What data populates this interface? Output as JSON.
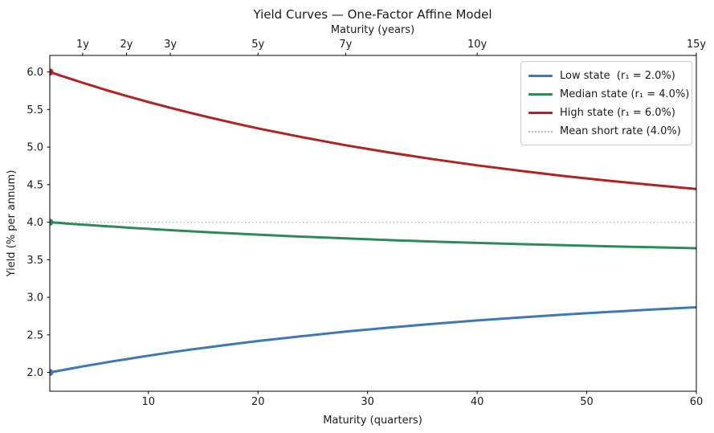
{
  "chart_data": {
    "type": "line",
    "title": "Yield Curves — One-Factor Affine Model",
    "top_xlabel": "Maturity (years)",
    "bottom_xlabel": "Maturity (quarters)",
    "ylabel": "Yield (% per annum)",
    "xlim": [
      1,
      60
    ],
    "ylim": [
      1.75,
      6.22
    ],
    "grid": false,
    "legend_position": "upper right",
    "x_quarters": [
      1,
      2,
      3,
      4,
      5,
      6,
      7,
      8,
      9,
      10,
      12,
      14,
      16,
      18,
      20,
      24,
      28,
      32,
      36,
      40,
      44,
      48,
      52,
      56,
      60
    ],
    "series": [
      {
        "name": "Low state  (r₁ = 2.0%)",
        "color": "#3d7ab5",
        "style": "solid",
        "start_marker": true,
        "values": [
          2.0,
          2.027,
          2.054,
          2.08,
          2.105,
          2.13,
          2.154,
          2.177,
          2.2,
          2.223,
          2.266,
          2.307,
          2.345,
          2.382,
          2.418,
          2.483,
          2.543,
          2.597,
          2.647,
          2.692,
          2.733,
          2.771,
          2.806,
          2.838,
          2.867
        ]
      },
      {
        "name": "Median state (r₁ = 4.0%)",
        "color": "#2e8b57",
        "style": "solid",
        "start_marker": true,
        "values": [
          4.0,
          3.989,
          3.978,
          3.968,
          3.958,
          3.948,
          3.939,
          3.929,
          3.92,
          3.911,
          3.894,
          3.878,
          3.862,
          3.848,
          3.834,
          3.807,
          3.784,
          3.762,
          3.742,
          3.724,
          3.708,
          3.693,
          3.679,
          3.666,
          3.654
        ]
      },
      {
        "name": "High state (r₁ = 6.0%)",
        "color": "#b22222",
        "style": "solid",
        "start_marker": true,
        "values": [
          6.0,
          5.951,
          5.903,
          5.856,
          5.811,
          5.766,
          5.723,
          5.681,
          5.64,
          5.6,
          5.523,
          5.449,
          5.379,
          5.313,
          5.249,
          5.132,
          5.024,
          4.927,
          4.838,
          4.757,
          4.683,
          4.614,
          4.552,
          4.495,
          4.442
        ]
      }
    ],
    "reference_line": {
      "label": "Mean short rate (4.0%)",
      "value": 4.0,
      "color": "#b9b9b9",
      "style": "dotted"
    },
    "bottom_ticks": {
      "positions": [
        10,
        20,
        30,
        40,
        50,
        60
      ],
      "labels": [
        "10",
        "20",
        "30",
        "40",
        "50",
        "60"
      ]
    },
    "top_ticks": {
      "positions_quarters": [
        4,
        8,
        12,
        20,
        28,
        40,
        60
      ],
      "labels": [
        "1y",
        "2y",
        "3y",
        "5y",
        "7y",
        "10y",
        "15y"
      ]
    },
    "y_ticks": {
      "positions": [
        2.0,
        2.5,
        3.0,
        3.5,
        4.0,
        4.5,
        5.0,
        5.5,
        6.0
      ],
      "labels": [
        "2.0",
        "2.5",
        "3.0",
        "3.5",
        "4.0",
        "4.5",
        "5.0",
        "5.5",
        "6.0"
      ]
    }
  }
}
